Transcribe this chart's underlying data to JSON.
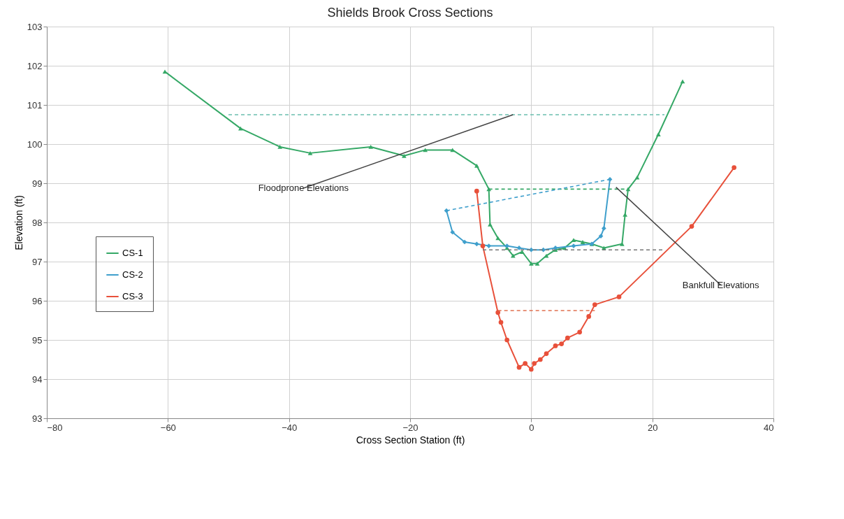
{
  "chart_data": {
    "type": "line",
    "title": "Shields Brook Cross Sections",
    "xlabel": "Cross Section Station (ft)",
    "ylabel": "Elevation (ft)",
    "xlim": [
      -80,
      40
    ],
    "xticks": [
      -80,
      -60,
      -40,
      -20,
      0,
      20,
      40
    ],
    "ylim": [
      93,
      103
    ],
    "yticks": [
      93,
      94,
      95,
      96,
      97,
      98,
      99,
      100,
      101,
      102,
      103
    ],
    "grid": true,
    "legend": "left",
    "series": [
      {
        "name": "CS-1",
        "color": "#35a866",
        "marker": "triangle",
        "line_style": "solid",
        "x": [
          -60.5,
          -48,
          -41.5,
          -36.5,
          -26.5,
          -21,
          -17.5,
          -13,
          -9,
          -7,
          -6.8,
          -5.5,
          -4,
          -3,
          -1.5,
          0,
          1,
          2.5,
          4,
          5.5,
          7,
          8.5,
          10,
          12,
          15,
          15.5,
          16,
          17.5,
          21,
          25
        ],
        "values": [
          101.85,
          100.4,
          99.93,
          99.77,
          99.93,
          99.7,
          99.85,
          99.85,
          99.45,
          98.85,
          97.95,
          97.6,
          97.35,
          97.15,
          97.25,
          96.95,
          96.95,
          97.15,
          97.3,
          97.35,
          97.55,
          97.5,
          97.45,
          97.35,
          97.45,
          98.2,
          98.85,
          99.15,
          100.25,
          101.6
        ]
      },
      {
        "name": "CS-2",
        "color": "#3f9fcc",
        "marker": "diamond",
        "line_style": "solid",
        "x": [
          -14,
          -13,
          -11,
          -9,
          -7,
          -4,
          -2,
          0,
          2,
          4,
          7,
          10,
          11.5,
          12,
          13
        ],
        "values": [
          98.3,
          97.75,
          97.5,
          97.45,
          97.4,
          97.4,
          97.35,
          97.3,
          97.3,
          97.35,
          97.4,
          97.45,
          97.65,
          97.85,
          99.1
        ]
      },
      {
        "name": "CS-3",
        "color": "#e8503a",
        "marker": "circle",
        "line_style": "solid",
        "x": [
          -9,
          -8,
          -5.5,
          -5,
          -4,
          -2,
          -1,
          0,
          0.5,
          1.5,
          2.5,
          4,
          5,
          6,
          8,
          9.5,
          10.5,
          14.5,
          26.5,
          33.5
        ],
        "values": [
          98.8,
          97.4,
          95.7,
          95.45,
          95,
          94.3,
          94.4,
          94.25,
          94.4,
          94.5,
          94.65,
          94.85,
          94.9,
          95.05,
          95.2,
          95.6,
          95.9,
          96.1,
          97.9,
          99.4
        ]
      },
      {
        "color": "#6bbfae",
        "marker": "none",
        "line_style": "dashed",
        "x": [
          -50,
          22
        ],
        "values": [
          100.75,
          100.75
        ]
      },
      {
        "color": "#35a866",
        "marker": "none",
        "line_style": "dashed",
        "x": [
          -7,
          16
        ],
        "values": [
          98.85,
          98.85
        ]
      },
      {
        "color": "#3f9fcc",
        "marker": "none",
        "line_style": "dashed",
        "x": [
          -14,
          13
        ],
        "values": [
          98.3,
          99.1
        ]
      },
      {
        "color": "#777777",
        "marker": "none",
        "line_style": "dashed",
        "x": [
          -8,
          22
        ],
        "values": [
          97.3,
          97.3
        ]
      },
      {
        "color": "#e07050",
        "marker": "none",
        "line_style": "dashed",
        "x": [
          -5.5,
          10.5
        ],
        "values": [
          95.75,
          95.75
        ]
      }
    ],
    "annotations": [
      {
        "text": "Floodprone Elevations",
        "x": -3,
        "y": 100.75
      },
      {
        "text": "Bankfull Elevations",
        "x": 14,
        "y": 98.9
      }
    ]
  }
}
